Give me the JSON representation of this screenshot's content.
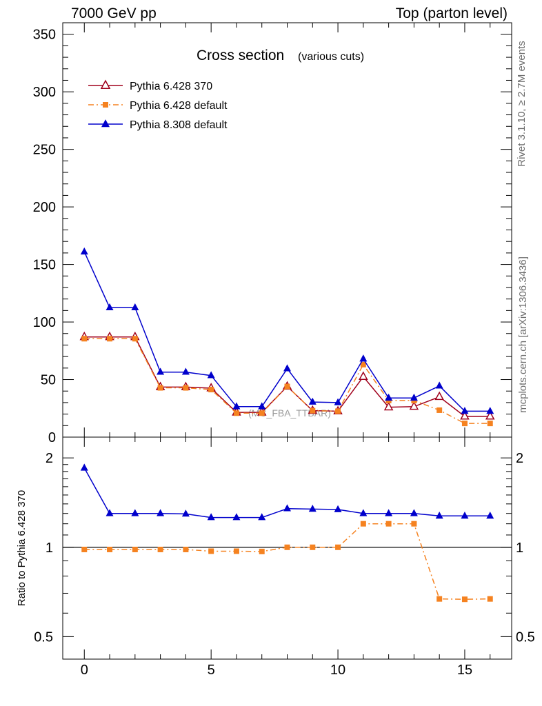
{
  "header": {
    "left": "7000 GeV pp",
    "right": "Top (parton level)"
  },
  "side_labels": {
    "rivet": "Rivet 3.1.10, ≥ 2.7M events",
    "mcplots": "mcplots.cern.ch [arXiv:1306.3436]"
  },
  "chart_data": [
    {
      "type": "line",
      "title": "Cross section",
      "subtitle": "(various cuts)",
      "watermark": "(MC_FBA_TTBAR)",
      "xlabel": "",
      "ylabel": "",
      "xlim": [
        -0.85,
        16.85
      ],
      "ylim": [
        0,
        360
      ],
      "yticks": [
        0,
        50,
        100,
        150,
        200,
        250,
        300,
        350
      ],
      "x": [
        0,
        1,
        2,
        3,
        4,
        5,
        6,
        7,
        8,
        9,
        10,
        11,
        12,
        13,
        14,
        15,
        16
      ],
      "legend_position": "top-left",
      "series": [
        {
          "name": "Pythia 6.428 370",
          "color": "#a0001c",
          "marker": "open-triangle",
          "line": "solid",
          "values": [
            87,
            87,
            87,
            43.5,
            43.5,
            42.5,
            21.5,
            21.5,
            44,
            23,
            22.5,
            52.5,
            26,
            26.5,
            35,
            18,
            18
          ]
        },
        {
          "name": "Pythia 6.428 default",
          "color": "#f58220",
          "marker": "square",
          "line": "dashdot",
          "values": [
            85.5,
            85.5,
            85.5,
            42.8,
            42.8,
            41.3,
            20.8,
            20.8,
            44,
            23,
            22.5,
            63,
            31.8,
            31.8,
            23.4,
            11.9,
            11.9
          ]
        },
        {
          "name": "Pythia 8.308 default",
          "color": "#0000cc",
          "marker": "filled-triangle",
          "line": "solid",
          "values": [
            161,
            112.5,
            112.5,
            56.5,
            56.5,
            53.5,
            26.5,
            26.5,
            59.5,
            30.5,
            30,
            68,
            34,
            34,
            44.5,
            22.5,
            22.5
          ]
        }
      ]
    },
    {
      "type": "line",
      "ylabel": "Ratio to Pythia 6.428 370",
      "yscale": "log",
      "ylim": [
        0.42,
        2.35
      ],
      "yticks": [
        0.5,
        1,
        2
      ],
      "ytick_labels": [
        "0.5",
        "1",
        "2"
      ],
      "xticks": [
        0,
        5,
        10,
        15
      ],
      "xtick_labels": [
        "0",
        "5",
        "10",
        "15"
      ],
      "reference_line": 1,
      "x": [
        0,
        1,
        2,
        3,
        4,
        5,
        6,
        7,
        8,
        9,
        10,
        11,
        12,
        13,
        14,
        15,
        16
      ],
      "series": [
        {
          "name": "Pythia 6.428 default",
          "color": "#f58220",
          "marker": "square",
          "line": "dashdot",
          "values": [
            0.983,
            0.983,
            0.983,
            0.983,
            0.983,
            0.97,
            0.97,
            0.968,
            1.0,
            1.0,
            1.0,
            1.2,
            1.2,
            1.2,
            0.67,
            0.668,
            0.67
          ]
        },
        {
          "name": "Pythia 8.308 default",
          "color": "#0000cc",
          "marker": "filled-triangle",
          "line": "solid",
          "values": [
            1.85,
            1.3,
            1.3,
            1.3,
            1.295,
            1.26,
            1.26,
            1.26,
            1.35,
            1.345,
            1.34,
            1.3,
            1.3,
            1.3,
            1.275,
            1.275,
            1.275
          ]
        }
      ]
    }
  ]
}
